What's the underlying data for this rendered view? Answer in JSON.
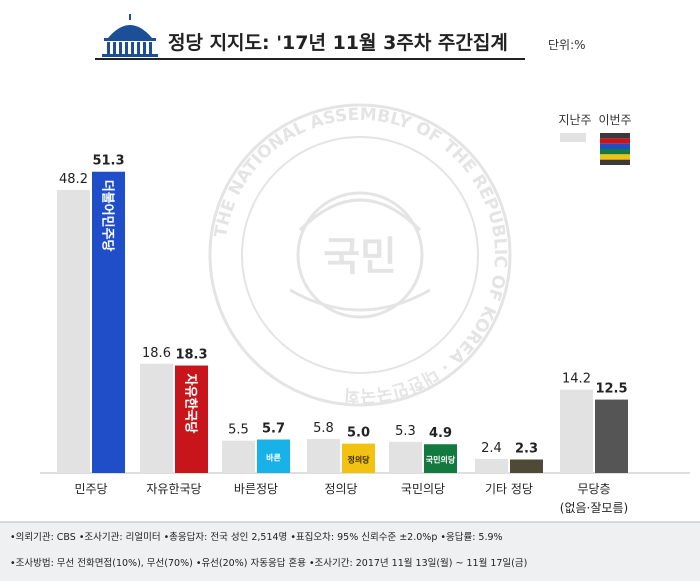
{
  "header": {
    "title": "정당 지지도: '17년 11월 3주차 주간집계",
    "unit": "단위:%"
  },
  "legend": {
    "prev_label": "지난주",
    "curr_label": "이번주"
  },
  "watermark": {
    "seal_text": "국민",
    "ring_text": "THE NATIONAL ASSEMBLY OF THE REPUBLIC OF KOREA · 대한민국국회"
  },
  "chart_data": {
    "type": "bar",
    "categories": [
      "민주당",
      "자유한국당",
      "바른정당",
      "정의당",
      "국민의당",
      "기타 정당",
      "무당층"
    ],
    "category_sub": [
      "",
      "",
      "",
      "",
      "",
      "",
      "(없음·잘모름)"
    ],
    "series": [
      {
        "name": "지난주",
        "values": [
          48.2,
          18.6,
          5.5,
          5.8,
          5.3,
          2.4,
          14.2
        ]
      },
      {
        "name": "이번주",
        "values": [
          51.3,
          18.3,
          5.7,
          5.0,
          4.9,
          2.3,
          12.5
        ]
      }
    ],
    "value_labels_prev": [
      "48.2",
      "18.6",
      "5.5",
      "5.8",
      "5.3",
      "2.4",
      "14.2"
    ],
    "value_labels_curr": [
      "51.3",
      "18.3",
      "5.7",
      "5.0",
      "4.9",
      "2.3",
      "12.5"
    ],
    "bar_logos": [
      "더불어민주당",
      "자유한국당",
      "바른",
      "정의당",
      "국민의당",
      "",
      ""
    ],
    "ylim": [
      0,
      55
    ],
    "colors": {
      "prev": "#e2e2e2",
      "curr": [
        "#1f4ec8",
        "#c8151b",
        "#19b2e8",
        "#f2c213",
        "#137a3f",
        "#4f4a38",
        "#555555"
      ],
      "legend_stripes": [
        "#3a3a3a",
        "#c8151b",
        "#1f4ec8",
        "#137a3f",
        "#f2c213",
        "#3a3a3a"
      ],
      "title_icon": "#1c4f98"
    }
  },
  "footer": {
    "line1": "•의뢰기관: CBS •조사기관: 리얼미터 •총응답자: 전국 성인 2,514명 •표집오차: 95% 신뢰수준 ±2.0%p •응답률: 5.9%",
    "line2": "•조사방법: 무선 전화면접(10%), 무선(70%) •유선(20%) 자동응답 혼용 •조사기간: 2017년 11월 13일(월) ~ 11월 17일(금)"
  }
}
